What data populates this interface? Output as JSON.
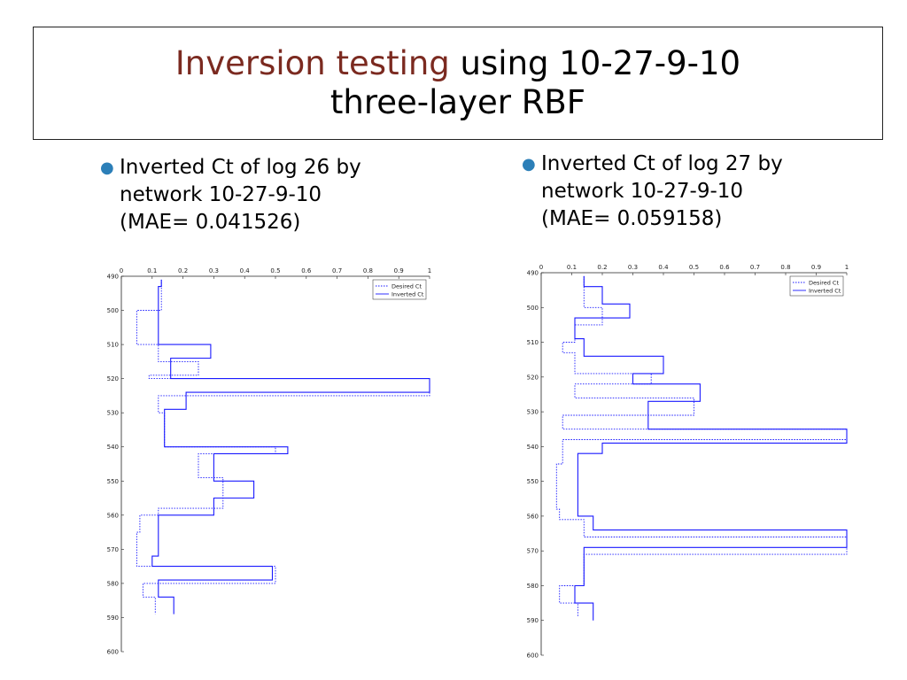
{
  "slide": {
    "title_highlight": "Inversion testing",
    "title_rest_line1": " using 10-27-9-10",
    "title_line2": "three-layer RBF"
  },
  "bullets": [
    {
      "line1": "Inverted Ct of log 26 by",
      "line2": "network 10-27-9-10",
      "line3": "(MAE= 0.041526)"
    },
    {
      "line1": "Inverted Ct of log 27 by",
      "line2": "network 10-27-9-10",
      "line3": "(MAE= 0.059158)"
    }
  ],
  "colors": {
    "title_highlight": "#7b2a20",
    "bullet": "#2c7fb8",
    "series": "#1a1aff",
    "axis": "#222222"
  },
  "chart_data": [
    {
      "type": "line",
      "orientation": "depth-vertical",
      "title": "",
      "xlabel": "",
      "ylabel": "",
      "xlim": [
        0,
        1
      ],
      "ylim": [
        490,
        600
      ],
      "y_inverted": true,
      "xticks": [
        "0",
        "0.1",
        "0.2",
        "0.3",
        "0.4",
        "0.5",
        "0.6",
        "0.7",
        "0.8",
        "0.9",
        "1"
      ],
      "yticks": [
        "490",
        "500",
        "510",
        "520",
        "530",
        "540",
        "550",
        "560",
        "570",
        "580",
        "590",
        "600"
      ],
      "legend": {
        "position": "top-right",
        "entries": [
          "Desired Ct",
          "Inverted Ct"
        ]
      },
      "series": [
        {
          "name": "Desired Ct",
          "style": "dotted",
          "depth": [
            491,
            500,
            500,
            510,
            510,
            515,
            515,
            519,
            519,
            520,
            520,
            525,
            525,
            530,
            530,
            540,
            540,
            542,
            542,
            549,
            549,
            552,
            552,
            558,
            558,
            560,
            560,
            565,
            565,
            575,
            575,
            580,
            580,
            584,
            584,
            589
          ],
          "value": [
            0.13,
            0.13,
            0.05,
            0.05,
            0.12,
            0.12,
            0.25,
            0.25,
            0.09,
            0.09,
            1.0,
            1.0,
            0.12,
            0.12,
            0.14,
            0.14,
            0.5,
            0.5,
            0.25,
            0.25,
            0.33,
            0.33,
            0.33,
            0.33,
            0.12,
            0.12,
            0.06,
            0.06,
            0.05,
            0.05,
            0.5,
            0.5,
            0.07,
            0.07,
            0.11,
            0.11
          ]
        },
        {
          "name": "Inverted Ct",
          "style": "solid",
          "depth": [
            491,
            493,
            493,
            510,
            510,
            514,
            514,
            519,
            519,
            520,
            520,
            524,
            524,
            529,
            529,
            535,
            535,
            540,
            540,
            542,
            542,
            545,
            545,
            550,
            550,
            555,
            555,
            560,
            560,
            566,
            566,
            572,
            572,
            575,
            575,
            579,
            579,
            584,
            584,
            589
          ],
          "value": [
            0.13,
            0.13,
            0.12,
            0.12,
            0.29,
            0.29,
            0.16,
            0.16,
            0.16,
            0.16,
            1.0,
            1.0,
            0.21,
            0.21,
            0.14,
            0.14,
            0.14,
            0.14,
            0.54,
            0.54,
            0.3,
            0.3,
            0.3,
            0.3,
            0.43,
            0.43,
            0.3,
            0.3,
            0.12,
            0.12,
            0.12,
            0.12,
            0.1,
            0.1,
            0.49,
            0.49,
            0.12,
            0.12,
            0.17,
            0.17
          ]
        }
      ]
    },
    {
      "type": "line",
      "orientation": "depth-vertical",
      "title": "",
      "xlabel": "",
      "ylabel": "",
      "xlim": [
        0,
        1
      ],
      "ylim": [
        490,
        600
      ],
      "y_inverted": true,
      "xticks": [
        "0",
        "0.1",
        "0.2",
        "0.3",
        "0.4",
        "0.5",
        "0.6",
        "0.7",
        "0.8",
        "0.9",
        "1"
      ],
      "yticks": [
        "490",
        "500",
        "510",
        "520",
        "530",
        "540",
        "550",
        "560",
        "570",
        "580",
        "590",
        "600"
      ],
      "legend": {
        "position": "top-right",
        "entries": [
          "Desired Ct",
          "Inverted Ct"
        ]
      },
      "series": [
        {
          "name": "Desired Ct",
          "style": "dotted",
          "depth": [
            491,
            500,
            500,
            505,
            505,
            510,
            510,
            513,
            513,
            519,
            519,
            522,
            522,
            526,
            526,
            531,
            531,
            535,
            535,
            538,
            538,
            545,
            545,
            558,
            558,
            561,
            561,
            566,
            566,
            571,
            571,
            580,
            580,
            585,
            585,
            589
          ],
          "value": [
            0.14,
            0.14,
            0.2,
            0.2,
            0.11,
            0.11,
            0.07,
            0.07,
            0.11,
            0.11,
            0.36,
            0.36,
            0.11,
            0.11,
            0.5,
            0.5,
            0.07,
            0.07,
            1.0,
            1.0,
            0.07,
            0.07,
            0.05,
            0.05,
            0.06,
            0.06,
            0.14,
            0.14,
            1.0,
            1.0,
            0.14,
            0.14,
            0.06,
            0.06,
            0.12,
            0.12
          ]
        },
        {
          "name": "Inverted Ct",
          "style": "solid",
          "depth": [
            491,
            494,
            494,
            499,
            499,
            503,
            503,
            509,
            509,
            514,
            514,
            519,
            519,
            522,
            522,
            527,
            527,
            535,
            535,
            539,
            539,
            542,
            542,
            560,
            560,
            564,
            564,
            569,
            569,
            575,
            575,
            580,
            580,
            585,
            585,
            590
          ],
          "value": [
            0.14,
            0.14,
            0.2,
            0.2,
            0.29,
            0.29,
            0.11,
            0.11,
            0.14,
            0.14,
            0.4,
            0.4,
            0.3,
            0.3,
            0.52,
            0.52,
            0.35,
            0.35,
            1.0,
            1.0,
            0.2,
            0.2,
            0.12,
            0.12,
            0.17,
            0.17,
            1.0,
            1.0,
            0.14,
            0.14,
            0.14,
            0.14,
            0.11,
            0.11,
            0.17,
            0.17
          ]
        }
      ]
    }
  ]
}
